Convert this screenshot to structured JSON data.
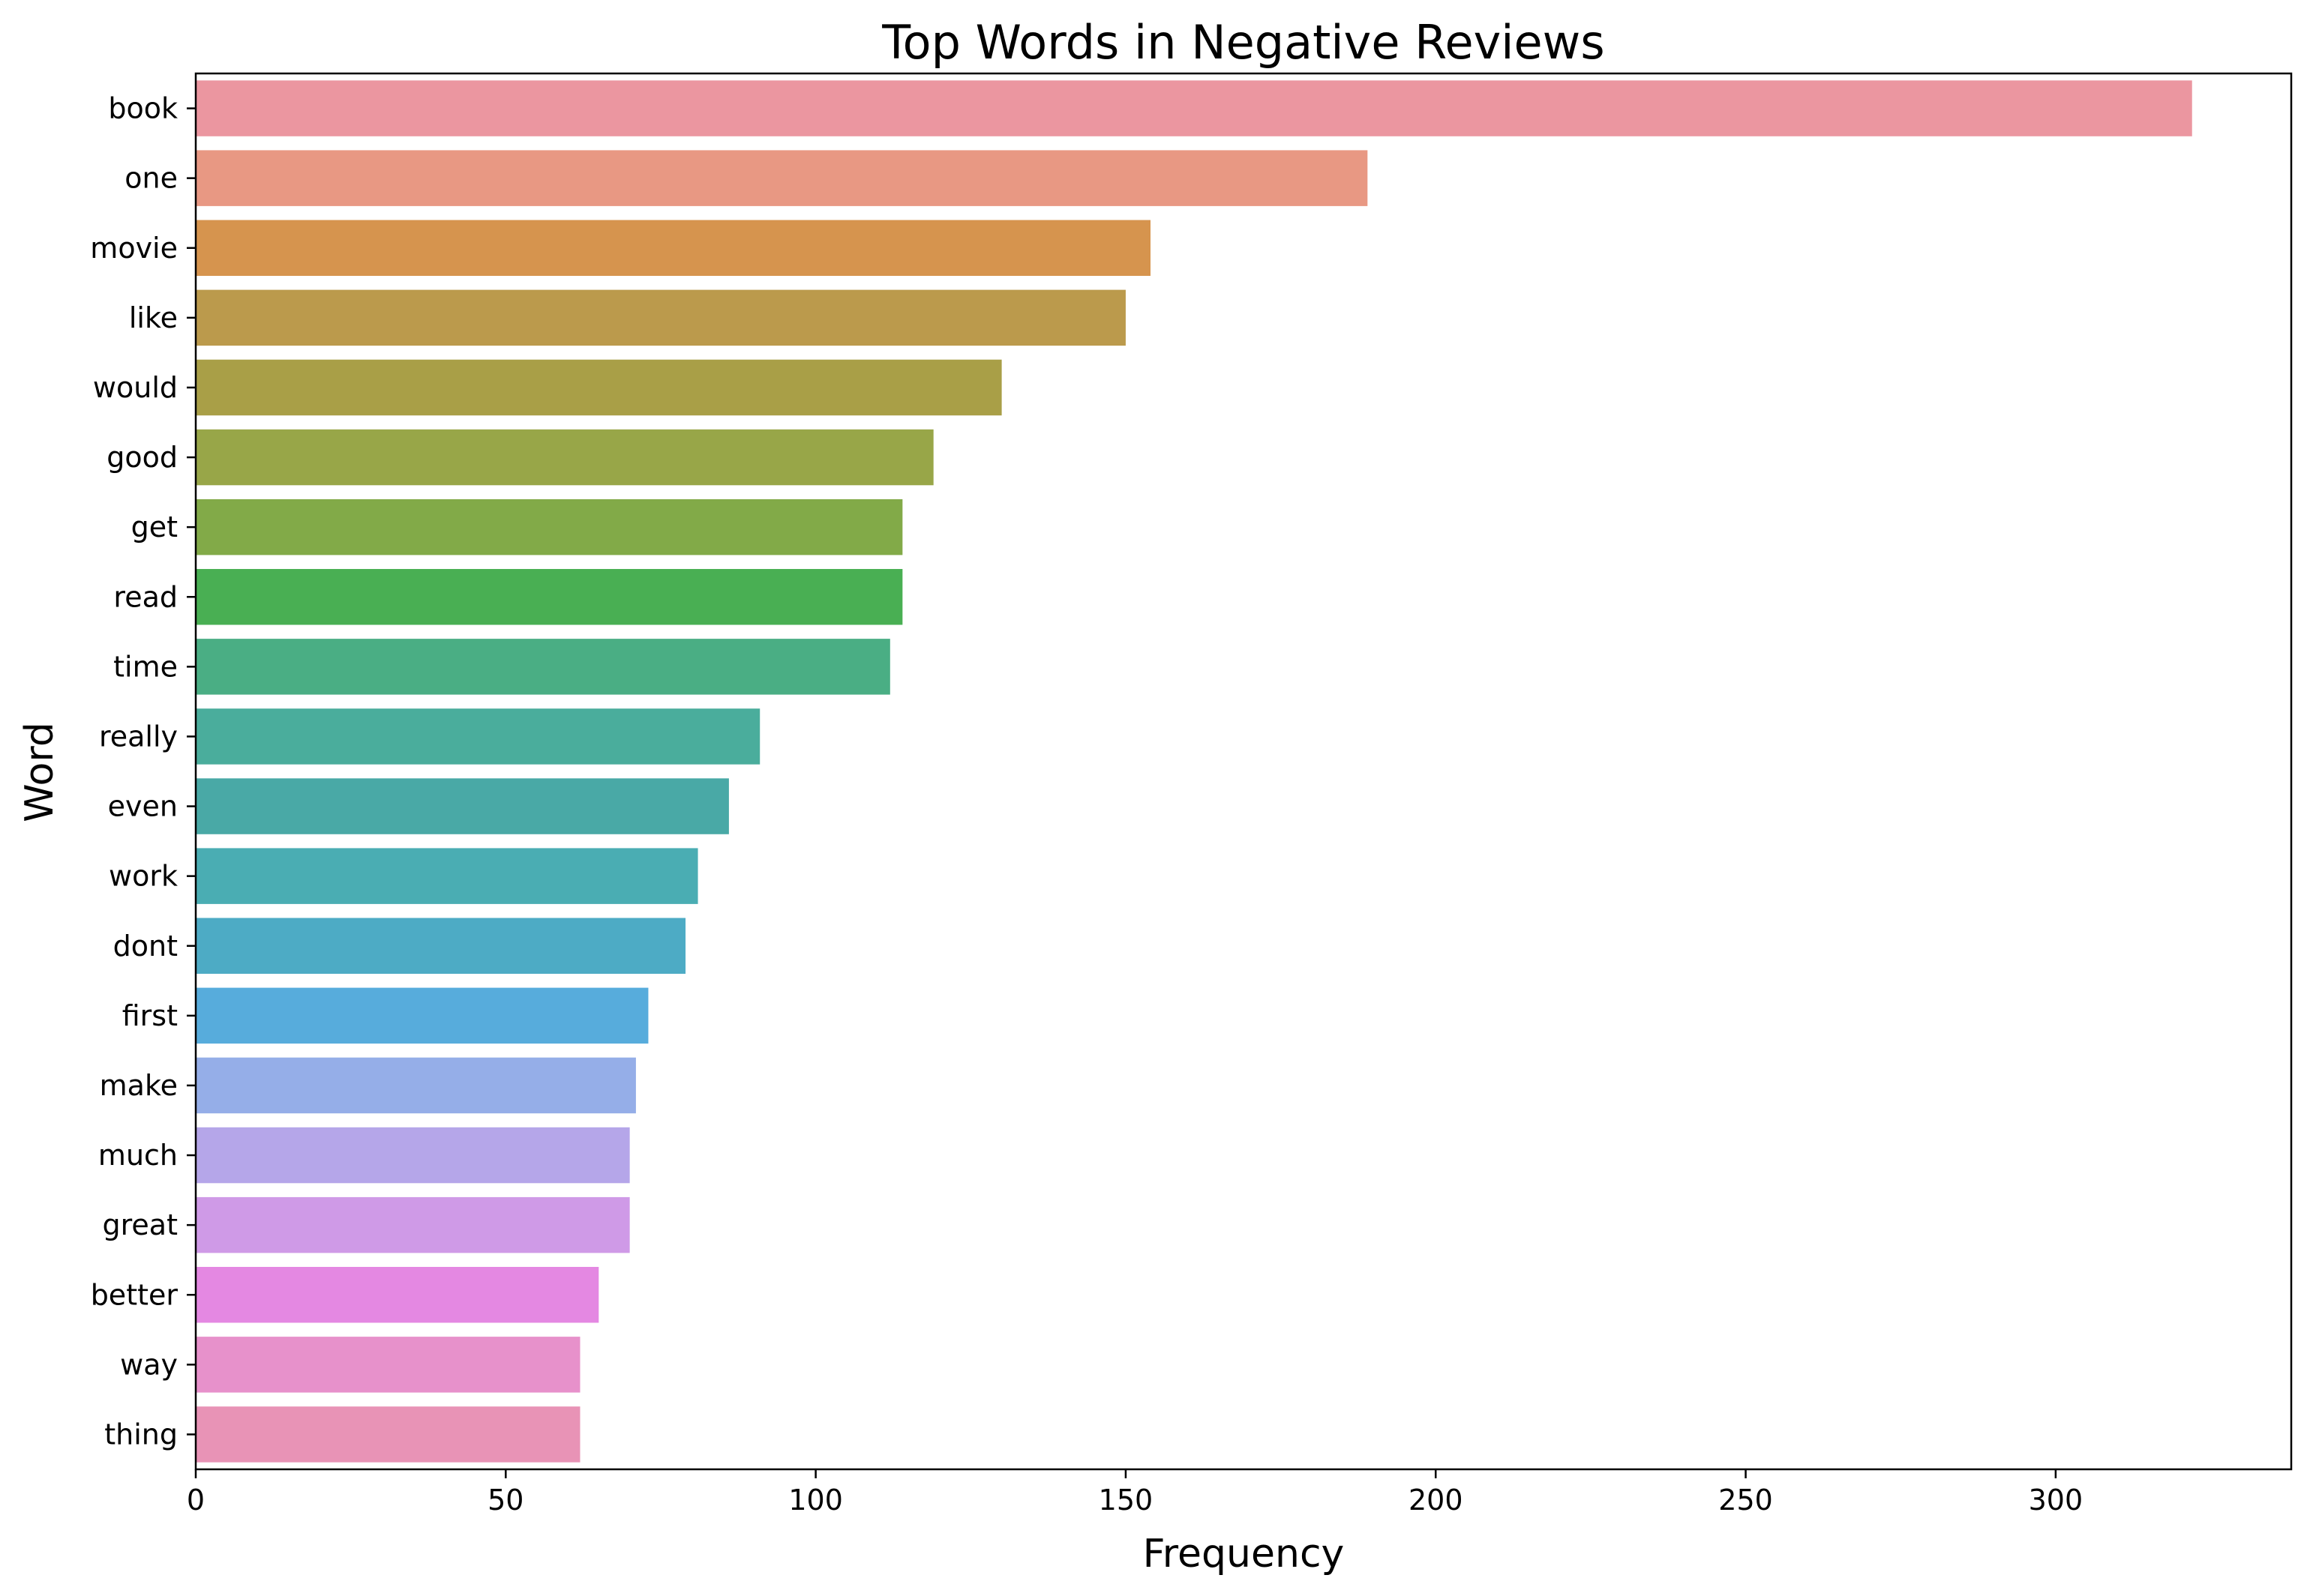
{
  "chart_data": {
    "type": "bar",
    "orientation": "horizontal",
    "title": "Top Words in Negative Reviews",
    "xlabel": "Frequency",
    "ylabel": "Word",
    "xlim": [
      0,
      338
    ],
    "xticks": [
      0,
      50,
      100,
      150,
      200,
      250,
      300
    ],
    "grid": false,
    "legend": "none",
    "categories": [
      "book",
      "one",
      "movie",
      "like",
      "would",
      "good",
      "get",
      "read",
      "time",
      "really",
      "even",
      "work",
      "dont",
      "first",
      "make",
      "much",
      "great",
      "better",
      "way",
      "thing"
    ],
    "values": [
      322,
      189,
      154,
      150,
      130,
      119,
      114,
      114,
      112,
      91,
      86,
      81,
      79,
      73,
      71,
      70,
      70,
      65,
      62,
      62
    ],
    "colors": [
      "#eb96a0",
      "#e89883",
      "#d6944e",
      "#bb9a4c",
      "#a99f47",
      "#98a648",
      "#82aa48",
      "#49af53",
      "#4aae84",
      "#4aad9c",
      "#49a9a6",
      "#4aadb3",
      "#4dabc5",
      "#57acdc",
      "#95aee8",
      "#b5a6e9",
      "#cf9ae7",
      "#e488e2",
      "#e791cb",
      "#e893b6"
    ]
  }
}
